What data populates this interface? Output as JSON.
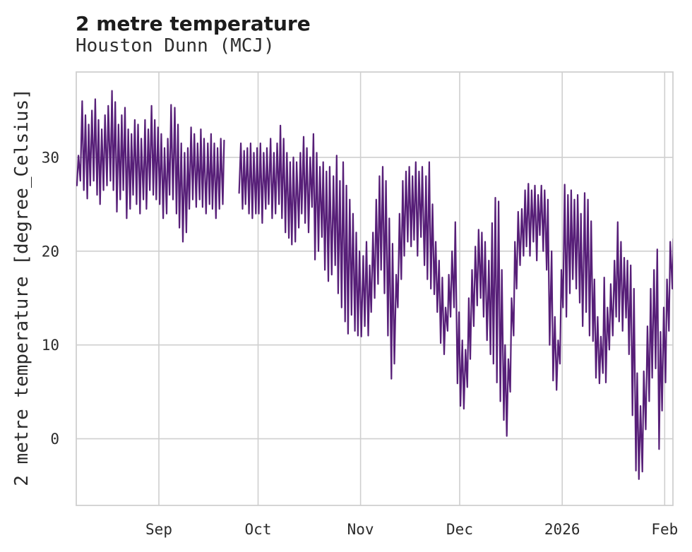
{
  "chart_data": {
    "type": "line",
    "title": "2 metre temperature",
    "subtitle": "Houston Dunn (MCJ)",
    "xlabel": "",
    "ylabel": "2 metre temperature [degree_Celsius]",
    "legend": "none",
    "grid": true,
    "line_color": "#571f78",
    "grid_color": "#cfcfcf",
    "text_color": "#2b2b2b",
    "background": "#ffffff",
    "ylim": [
      -7.1,
      39.1
    ],
    "x_domain_days": 180.5,
    "points_per_day": 2,
    "x_encoding": "index of daily_min/daily_max arrays = days from left edge; each day plots morning min then afternoon max; null = data gap",
    "yticks": [
      {
        "value": 0,
        "label": "0"
      },
      {
        "value": 10,
        "label": "10"
      },
      {
        "value": 20,
        "label": "20"
      },
      {
        "value": 30,
        "label": "30"
      }
    ],
    "xticks": [
      {
        "day": 25,
        "label": "Sep"
      },
      {
        "day": 55,
        "label": "Oct"
      },
      {
        "day": 86,
        "label": "Nov"
      },
      {
        "day": 116,
        "label": "Dec"
      },
      {
        "day": 147,
        "label": "2026"
      },
      {
        "day": 178,
        "label": "Feb"
      }
    ],
    "daily_max": [
      30.2,
      36,
      34.5,
      33.5,
      35,
      36.2,
      34,
      33,
      34.5,
      35.5,
      37.1,
      35.9,
      33.5,
      34.5,
      35.3,
      33,
      32.5,
      34,
      33.5,
      32,
      34,
      33,
      35.5,
      34,
      33.2,
      32.5,
      31,
      32,
      35.6,
      35.3,
      33.5,
      31.5,
      30.5,
      31,
      33.2,
      32.5,
      31.5,
      33,
      32,
      31.5,
      32.5,
      31.5,
      31,
      32,
      31.8,
      null,
      null,
      null,
      null,
      31.5,
      30.7,
      31,
      31.5,
      30.5,
      31,
      31.5,
      30.5,
      31,
      32,
      30.5,
      31.5,
      33.4,
      32,
      30.5,
      29.5,
      30,
      29.5,
      30.5,
      32.2,
      31,
      30,
      32.5,
      30.5,
      29,
      29.5,
      28.5,
      29,
      28,
      30.2,
      27.5,
      29.5,
      27,
      25.5,
      24,
      22,
      20,
      19.5,
      21,
      18.5,
      22,
      25.5,
      28,
      29,
      27.5,
      23.5,
      20.8,
      17.5,
      24,
      27.5,
      28.5,
      29,
      28,
      29.5,
      28.5,
      29,
      28,
      29.5,
      25,
      21,
      19,
      17.2,
      14,
      17.5,
      20,
      23.1,
      13.5,
      10.5,
      9.5,
      15,
      18,
      20.5,
      22.3,
      22,
      21,
      19,
      23,
      25.7,
      25.3,
      18,
      10,
      8.5,
      15,
      21,
      24.2,
      24.5,
      26.5,
      27.2,
      26.5,
      27,
      26,
      27,
      26.5,
      25.5,
      20,
      13,
      10.5,
      18,
      27.1,
      26,
      26.5,
      25.5,
      26,
      24,
      26.2,
      25.5,
      23.2,
      17,
      13,
      10.9,
      17.2,
      14,
      16.5,
      19,
      23.1,
      21,
      19.3,
      19,
      18.5,
      16,
      7,
      3.5,
      7.2,
      12,
      16,
      18,
      20.2,
      11.4,
      14,
      17,
      21,
      21.3
    ],
    "daily_min": [
      27,
      27.5,
      26.5,
      25.6,
      27,
      27.5,
      26,
      25,
      26.5,
      27,
      27.5,
      26.5,
      24.2,
      25.5,
      26.5,
      23.5,
      24.5,
      26,
      25,
      24,
      25.5,
      24.5,
      26.5,
      26,
      25.5,
      25,
      23.5,
      24,
      26,
      25.5,
      24,
      22.5,
      21,
      22,
      24.5,
      25.5,
      24.7,
      25.5,
      24.7,
      24,
      25,
      24.5,
      23.5,
      24.5,
      25,
      null,
      null,
      null,
      null,
      26.2,
      24.5,
      25,
      24,
      23.5,
      24,
      24,
      23,
      24.5,
      25,
      23.5,
      24,
      25,
      23.5,
      22,
      21.4,
      20.7,
      21,
      22.5,
      24,
      23,
      22,
      24.7,
      19.1,
      20,
      21.5,
      18,
      16.8,
      17.5,
      18.5,
      15.5,
      14,
      12.5,
      11.2,
      13.2,
      11.5,
      11,
      10.9,
      12,
      11,
      13.5,
      15,
      16.5,
      18,
      15.5,
      11,
      6.4,
      8,
      14,
      17,
      19.5,
      21,
      20.5,
      21.2,
      19.5,
      21.5,
      18.5,
      17,
      16,
      15.4,
      13.5,
      10.2,
      9,
      11.5,
      13,
      14,
      5.9,
      3.5,
      3.2,
      5.5,
      8.5,
      12,
      14.2,
      15,
      13,
      10.5,
      9,
      8,
      6,
      4,
      2,
      0.3,
      5,
      11,
      16,
      18.5,
      19.5,
      20.5,
      19.5,
      21,
      19,
      21.7,
      20,
      18,
      10,
      6.2,
      5.2,
      8,
      14,
      13,
      15.5,
      17,
      16,
      14.5,
      12,
      13.5,
      11,
      10.4,
      6.5,
      5.9,
      7,
      6,
      9.5,
      11,
      13,
      12.5,
      11.5,
      12.9,
      9,
      2.5,
      -3.4,
      -4.3,
      -3.5,
      1,
      4,
      6.5,
      7.5,
      -1.1,
      3,
      6,
      11.5,
      16
    ]
  }
}
